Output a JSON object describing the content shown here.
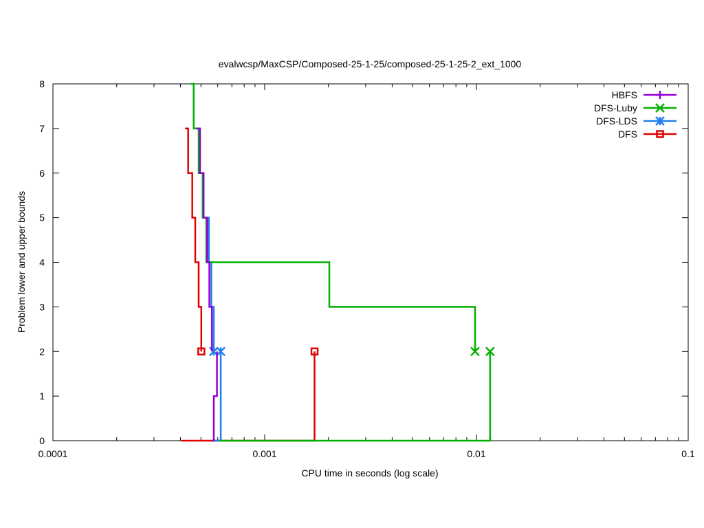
{
  "chart_data": {
    "type": "line",
    "title": "evalwcsp/MaxCSP/Composed-25-1-25/composed-25-1-25-2_ext_1000",
    "xlabel": "CPU time in seconds (log scale)",
    "ylabel": "Problem lower and upper bounds",
    "x_scale": "log",
    "xlim": [
      0.0001,
      0.1
    ],
    "ylim": [
      0,
      8
    ],
    "x_ticks": [
      {
        "value": 0.0001,
        "label": "0.0001"
      },
      {
        "value": 0.001,
        "label": "0.001"
      },
      {
        "value": 0.01,
        "label": "0.01"
      },
      {
        "value": 0.1,
        "label": "0.1"
      }
    ],
    "y_ticks": [
      {
        "value": 0,
        "label": "0"
      },
      {
        "value": 1,
        "label": "1"
      },
      {
        "value": 2,
        "label": "2"
      },
      {
        "value": 3,
        "label": "3"
      },
      {
        "value": 4,
        "label": "4"
      },
      {
        "value": 5,
        "label": "5"
      },
      {
        "value": 6,
        "label": "6"
      },
      {
        "value": 7,
        "label": "7"
      },
      {
        "value": 8,
        "label": "8"
      }
    ],
    "grid": false,
    "legend_position": "top-right",
    "series": [
      {
        "name": "HBFS",
        "color": "#9400d3",
        "marker": "plus",
        "upper": [
          [
            0.000475,
            7
          ],
          [
            0.000495,
            6
          ],
          [
            0.000515,
            5
          ],
          [
            0.000535,
            4
          ],
          [
            0.000548,
            3
          ],
          [
            0.000563,
            2
          ]
        ],
        "lower": [
          [
            0.000567,
            0
          ],
          [
            0.000575,
            1
          ],
          [
            0.000595,
            2
          ]
        ],
        "markers": []
      },
      {
        "name": "DFS-Luby",
        "color": "#00b000",
        "marker": "x",
        "upper": [
          [
            0.000448,
            8
          ],
          [
            0.000462,
            7
          ],
          [
            0.000488,
            6
          ],
          [
            0.00051,
            5
          ],
          [
            0.00053,
            4
          ],
          [
            0.00202,
            3
          ],
          [
            0.00985,
            2
          ]
        ],
        "lower": [
          [
            0.00061,
            0
          ],
          [
            0.0116,
            2
          ]
        ],
        "markers": [
          [
            0.00985,
            2
          ],
          [
            0.0116,
            2
          ]
        ]
      },
      {
        "name": "DFS-LDS",
        "color": "#1e7ff0",
        "marker": "star",
        "upper": [
          [
            0.000468,
            7
          ],
          [
            0.00049,
            6
          ],
          [
            0.00051,
            5
          ],
          [
            0.000545,
            4
          ],
          [
            0.00056,
            3
          ],
          [
            0.000575,
            2
          ]
        ],
        "lower": [
          [
            0.00058,
            0
          ],
          [
            0.00062,
            2
          ]
        ],
        "markers": [
          [
            0.000575,
            2
          ],
          [
            0.00062,
            2
          ]
        ]
      },
      {
        "name": "DFS",
        "color": "#e00000",
        "marker": "square",
        "upper": [
          [
            0.00042,
            7
          ],
          [
            0.000435,
            6
          ],
          [
            0.000455,
            5
          ],
          [
            0.00047,
            4
          ],
          [
            0.000488,
            3
          ],
          [
            0.000502,
            2
          ]
        ],
        "lower": [
          [
            0.000405,
            0
          ],
          [
            0.00172,
            2
          ]
        ],
        "markers": [
          [
            0.000502,
            2
          ],
          [
            0.00172,
            2
          ]
        ]
      }
    ]
  }
}
